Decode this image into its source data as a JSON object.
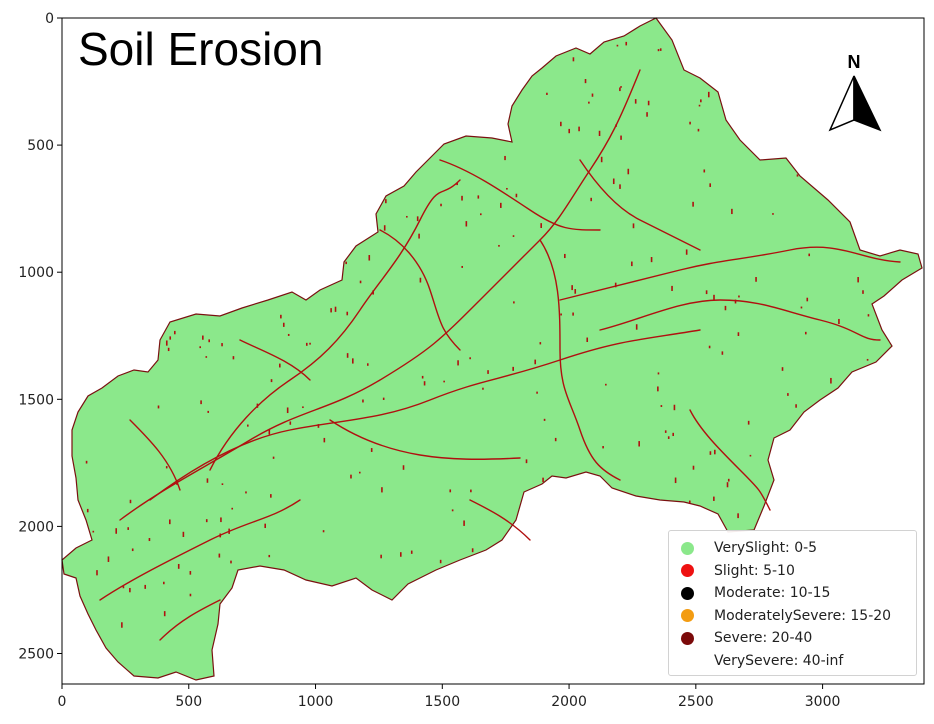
{
  "map": {
    "title": "Soil Erosion",
    "north_label": "N",
    "colors": {
      "basin_fill": "#8be88b",
      "channels": "#b01010",
      "frame": "#000000"
    }
  },
  "axes": {
    "x_ticks": [
      "0",
      "500",
      "1000",
      "1500",
      "2000",
      "2500",
      "3000"
    ],
    "y_ticks": [
      "0",
      "500",
      "1000",
      "1500",
      "2000",
      "2500"
    ],
    "x_range": [
      0,
      3400
    ],
    "y_range": [
      0,
      2620
    ]
  },
  "legend": {
    "items": [
      {
        "label": "VerySlight: 0-5",
        "color": "#8be88b"
      },
      {
        "label": "Slight: 5-10",
        "color": "#ee1111"
      },
      {
        "label": "Moderate: 10-15",
        "color": "#000000"
      },
      {
        "label": "ModeratelySevere: 15-20",
        "color": "#f39c12"
      },
      {
        "label": "Severe: 20-40",
        "color": "#7b0a0a"
      },
      {
        "label": "VerySevere: 40-inf",
        "color": "transparent"
      }
    ]
  }
}
